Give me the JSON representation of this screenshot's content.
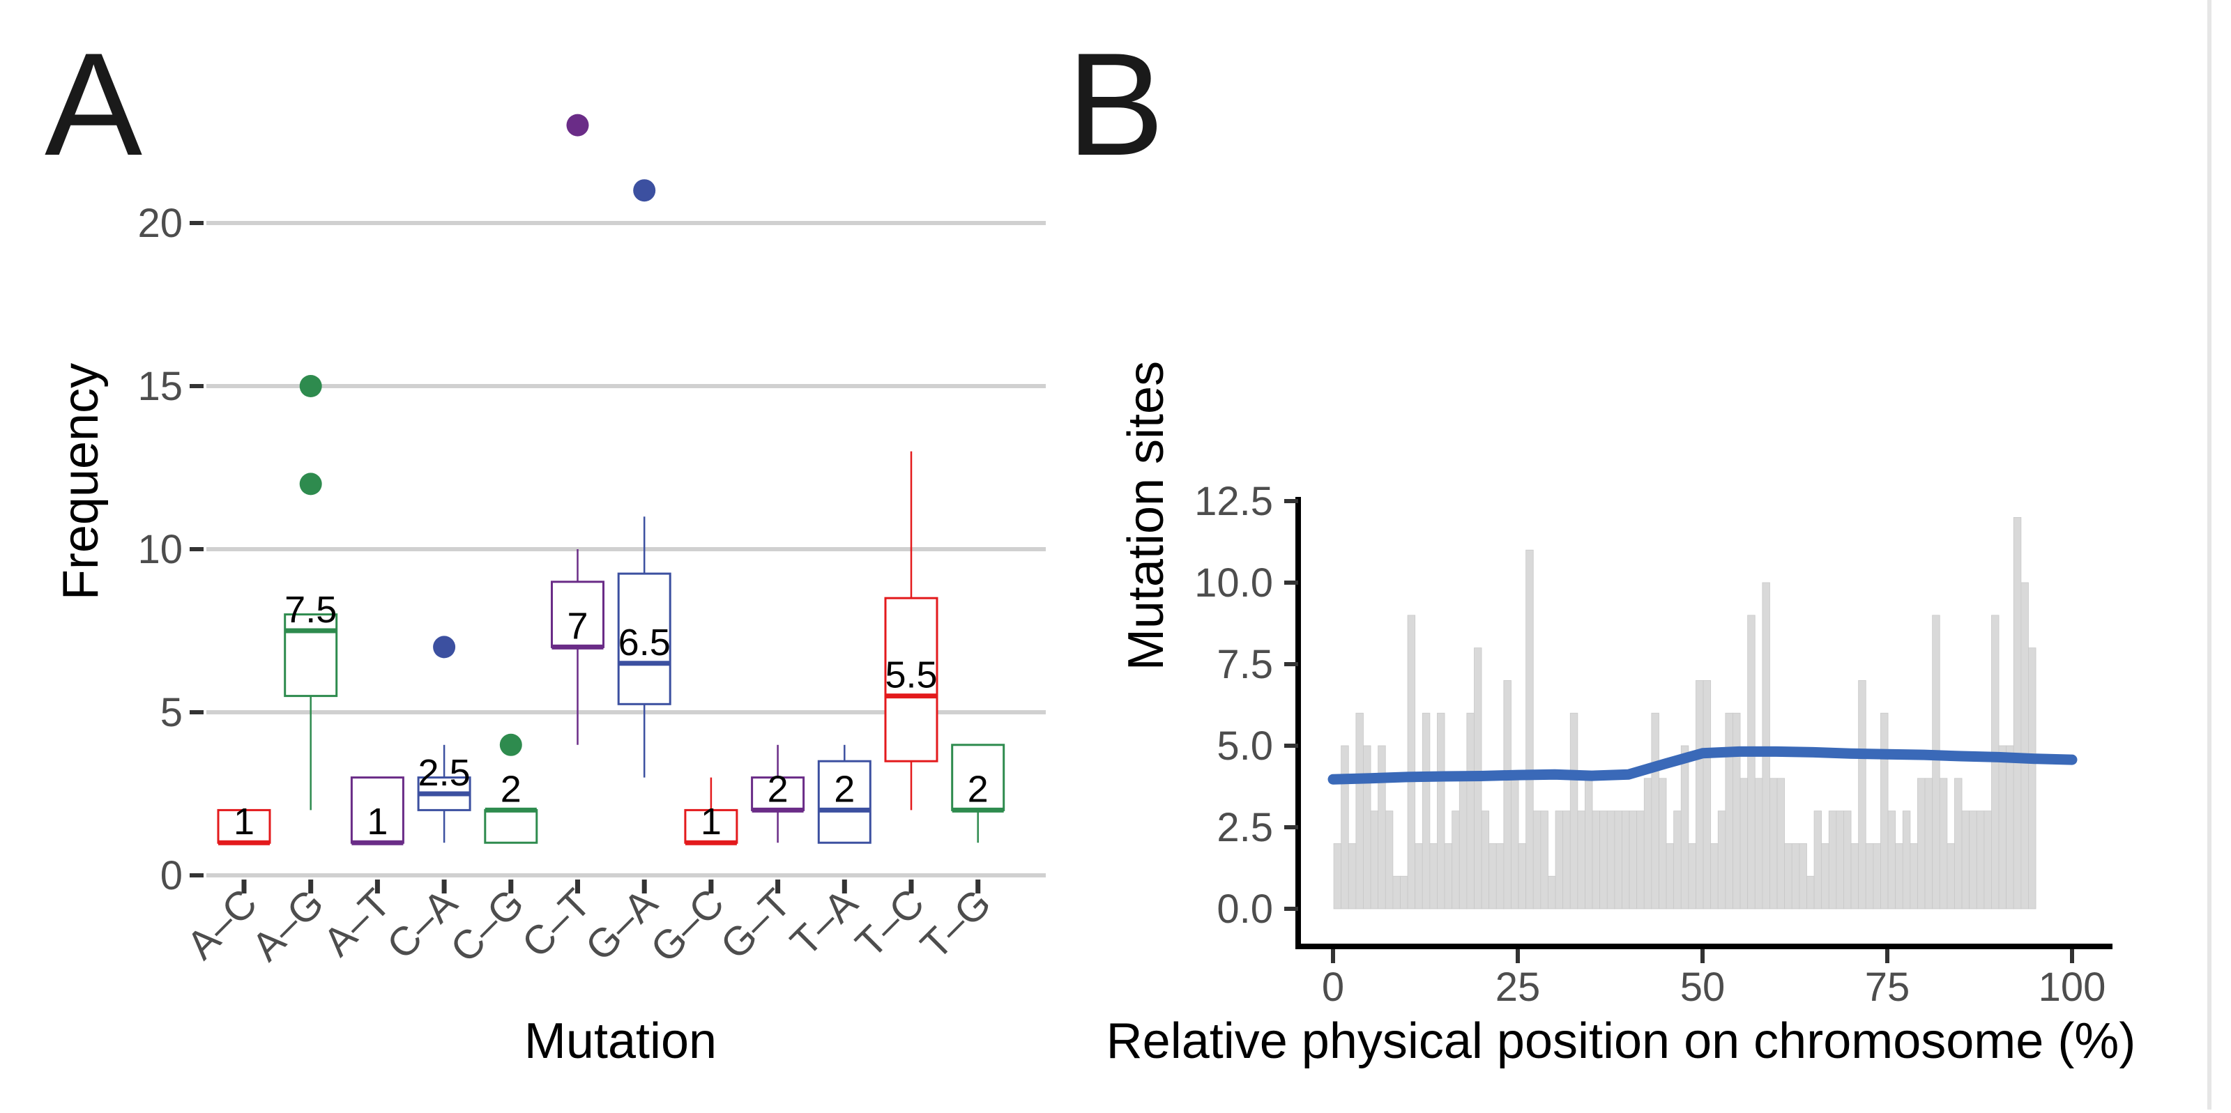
{
  "chart_data": [
    {
      "panel": "A",
      "type": "boxplot",
      "xlabel": "Mutation",
      "ylabel": "Frequency",
      "yticks": [
        0,
        5,
        10,
        15,
        20
      ],
      "ytick_labels": [
        "0",
        "5",
        "10",
        "15",
        "20"
      ],
      "ylim": [
        0,
        24
      ],
      "grid": "horizontal",
      "categories": [
        "A–C",
        "A–G",
        "A–T",
        "C–A",
        "C–G",
        "C–T",
        "G–A",
        "G–C",
        "G–T",
        "T–A",
        "T–C",
        "T–G"
      ],
      "boxes": [
        {
          "category": "A–C",
          "min": 1,
          "q1": 1,
          "median": 1,
          "q3": 2,
          "max": 2,
          "outliers": [],
          "label": "1",
          "color": "#e31a1c"
        },
        {
          "category": "A–G",
          "min": 2,
          "q1": 5.5,
          "median": 7.5,
          "q3": 8,
          "max": 8,
          "outliers": [
            12,
            15
          ],
          "label": "7.5",
          "color": "#2e8b4e"
        },
        {
          "category": "A–T",
          "min": 1,
          "q1": 1,
          "median": 1,
          "q3": 3,
          "max": 3,
          "outliers": [],
          "label": "1",
          "color": "#6a2c87"
        },
        {
          "category": "C–A",
          "min": 1,
          "q1": 2,
          "median": 2.5,
          "q3": 3,
          "max": 4,
          "outliers": [
            7
          ],
          "label": "2.5",
          "color": "#3c50a0"
        },
        {
          "category": "C–G",
          "min": 1,
          "q1": 1,
          "median": 2,
          "q3": 2,
          "max": 2,
          "outliers": [
            4
          ],
          "label": "2",
          "color": "#2e8b4e"
        },
        {
          "category": "C–T",
          "min": 4,
          "q1": 7,
          "median": 7,
          "q3": 9,
          "max": 10,
          "outliers": [
            23
          ],
          "label": "7",
          "color": "#6a2c87"
        },
        {
          "category": "G–A",
          "min": 3,
          "q1": 5.25,
          "median": 6.5,
          "q3": 9.25,
          "max": 11,
          "outliers": [
            21
          ],
          "label": "6.5",
          "color": "#3c50a0"
        },
        {
          "category": "G–C",
          "min": 1,
          "q1": 1,
          "median": 1,
          "q3": 2,
          "max": 3,
          "outliers": [],
          "label": "1",
          "color": "#e31a1c"
        },
        {
          "category": "G–T",
          "min": 1,
          "q1": 2,
          "median": 2,
          "q3": 3,
          "max": 4,
          "outliers": [],
          "label": "2",
          "color": "#6a2c87"
        },
        {
          "category": "T–A",
          "min": 1,
          "q1": 1,
          "median": 2,
          "q3": 3.5,
          "max": 4,
          "outliers": [],
          "label": "2",
          "color": "#3c50a0"
        },
        {
          "category": "T–C",
          "min": 2,
          "q1": 3.5,
          "median": 5.5,
          "q3": 8.5,
          "max": 13,
          "outliers": [],
          "label": "5.5",
          "color": "#e31a1c"
        },
        {
          "category": "T–G",
          "min": 1,
          "q1": 2,
          "median": 2,
          "q3": 4,
          "max": 4,
          "outliers": [],
          "label": "2",
          "color": "#2e8b4e"
        }
      ]
    },
    {
      "panel": "B",
      "type": "bar",
      "xlabel": "Relative physical position on chromosome (%)",
      "ylabel": "Mutation sites",
      "xticks": [
        0,
        25,
        50,
        75,
        100
      ],
      "xtick_labels": [
        "0",
        "25",
        "50",
        "75",
        "100"
      ],
      "yticks": [
        0,
        2.5,
        5,
        7.5,
        10,
        12.5
      ],
      "ytick_labels": [
        "0.0",
        "2.5",
        "5.0",
        "7.5",
        "10.0",
        "12.5"
      ],
      "xlim": [
        -2,
        105
      ],
      "ylim": [
        -0.6,
        12.5
      ],
      "bar_color": "#d9d9d9",
      "bar_width": 1,
      "values": [
        2,
        5,
        2,
        6,
        5,
        3,
        5,
        3,
        1,
        1,
        9,
        2,
        6,
        2,
        6,
        2,
        3,
        4,
        6,
        8,
        3,
        2,
        2,
        7,
        4,
        2,
        11,
        3,
        3,
        1,
        3,
        3,
        6,
        3,
        4,
        3,
        3,
        3,
        3,
        3,
        3,
        3,
        4,
        6,
        4,
        2,
        3,
        5,
        2,
        7,
        7,
        2,
        3,
        6,
        6,
        4,
        9,
        4,
        10,
        4,
        4,
        2,
        2,
        2,
        1,
        3,
        2,
        3,
        3,
        3,
        2,
        7,
        2,
        2,
        6,
        3,
        2,
        3,
        2,
        4,
        4,
        9,
        4,
        2,
        4,
        3,
        3,
        3,
        3,
        9,
        5,
        5,
        12,
        10,
        8
      ],
      "smooth_line": {
        "color": "#3a69b8",
        "x": [
          0,
          5,
          10,
          15,
          20,
          25,
          30,
          35,
          40,
          45,
          50,
          55,
          60,
          65,
          70,
          75,
          80,
          85,
          90,
          95,
          100
        ],
        "y": [
          3.97,
          4.0,
          4.04,
          4.06,
          4.07,
          4.1,
          4.12,
          4.08,
          4.12,
          4.45,
          4.77,
          4.82,
          4.82,
          4.8,
          4.76,
          4.74,
          4.72,
          4.68,
          4.65,
          4.6,
          4.57
        ]
      }
    }
  ]
}
